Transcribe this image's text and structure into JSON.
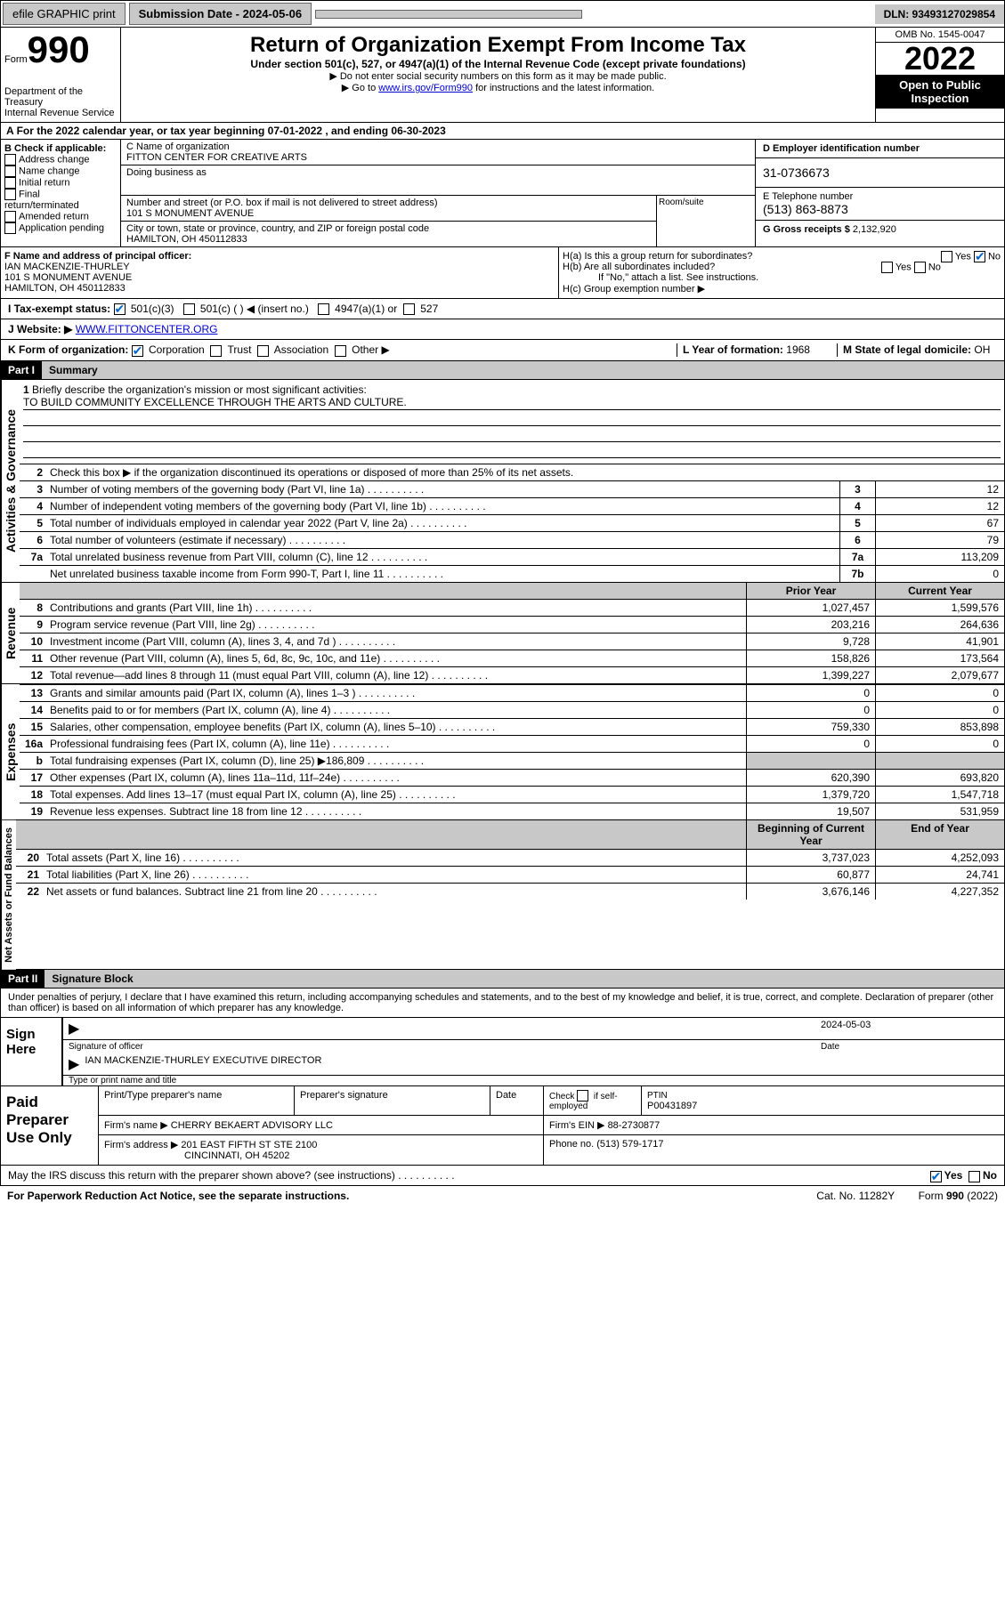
{
  "topbar": {
    "efile": "efile GRAPHIC print",
    "subdate_label": "Submission Date - 2024-05-06",
    "dln": "DLN: 93493127029854"
  },
  "header": {
    "form_word": "Form",
    "form_num": "990",
    "title": "Return of Organization Exempt From Income Tax",
    "subtitle": "Under section 501(c), 527, or 4947(a)(1) of the Internal Revenue Code (except private foundations)",
    "note1": "▶ Do not enter social security numbers on this form as it may be made public.",
    "note2_pre": "▶ Go to ",
    "note2_link": "www.irs.gov/Form990",
    "note2_post": " for instructions and the latest information.",
    "dept": "Department of the Treasury",
    "irs": "Internal Revenue Service",
    "omb": "OMB No. 1545-0047",
    "year": "2022",
    "pub1": "Open to Public",
    "pub2": "Inspection"
  },
  "taxyear": "For the 2022 calendar year, or tax year beginning 07-01-2022   , and ending 06-30-2023",
  "b": {
    "label": "B Check if applicable:",
    "addr": "Address change",
    "name": "Name change",
    "init": "Initial return",
    "final": "Final return/terminated",
    "amend": "Amended return",
    "app": "Application pending"
  },
  "c": {
    "label": "C Name of organization",
    "name": "FITTON CENTER FOR CREATIVE ARTS",
    "dba": "Doing business as",
    "street_label": "Number and street (or P.O. box if mail is not delivered to street address)",
    "room": "Room/suite",
    "street": "101 S MONUMENT AVENUE",
    "city_label": "City or town, state or province, country, and ZIP or foreign postal code",
    "city": "HAMILTON, OH  450112833"
  },
  "d": {
    "label": "D Employer identification number",
    "ein": "31-0736673"
  },
  "e": {
    "label": "E Telephone number",
    "phone": "(513) 863-8873"
  },
  "g": {
    "label": "G Gross receipts $",
    "val": "2,132,920"
  },
  "f": {
    "label": "F Name and address of principal officer:",
    "name": "IAN MACKENZIE-THURLEY",
    "addr1": "101 S MONUMENT AVENUE",
    "addr2": "HAMILTON, OH  450112833"
  },
  "h": {
    "a": "H(a)  Is this a group return for subordinates?",
    "b": "H(b)  Are all subordinates included?",
    "bnote": "If \"No,\" attach a list. See instructions.",
    "c": "H(c)  Group exemption number ▶"
  },
  "i": {
    "label": "I   Tax-exempt status:",
    "c3": "501(c)(3)",
    "c": "501(c) (  ) ◀ (insert no.)",
    "a1": "4947(a)(1) or",
    "s527": "527"
  },
  "j": {
    "label": "J   Website: ▶",
    "url": "WWW.FITTONCENTER.ORG"
  },
  "k": {
    "label": "K Form of organization:",
    "corp": "Corporation",
    "trust": "Trust",
    "assoc": "Association",
    "other": "Other ▶"
  },
  "l": {
    "label": "L Year of formation:",
    "val": "1968"
  },
  "m": {
    "label": "M State of legal domicile:",
    "val": "OH"
  },
  "part1": {
    "hdr": "Part I",
    "title": "Summary"
  },
  "tabs": {
    "ag": "Activities & Governance",
    "rev": "Revenue",
    "exp": "Expenses",
    "nab": "Net Assets or Fund Balances"
  },
  "s1": {
    "num": "1",
    "txt": "Briefly describe the organization's mission or most significant activities:",
    "mission": "TO BUILD COMMUNITY EXCELLENCE THROUGH THE ARTS AND CULTURE."
  },
  "s2": {
    "num": "2",
    "txt": "Check this box ▶        if the organization discontinued its operations or disposed of more than 25% of its net assets."
  },
  "lines": [
    {
      "num": "3",
      "txt": "Number of voting members of the governing body (Part VI, line 1a)",
      "box": "3",
      "val": "12"
    },
    {
      "num": "4",
      "txt": "Number of independent voting members of the governing body (Part VI, line 1b)",
      "box": "4",
      "val": "12"
    },
    {
      "num": "5",
      "txt": "Total number of individuals employed in calendar year 2022 (Part V, line 2a)",
      "box": "5",
      "val": "67"
    },
    {
      "num": "6",
      "txt": "Total number of volunteers (estimate if necessary)",
      "box": "6",
      "val": "79"
    },
    {
      "num": "7a",
      "txt": "Total unrelated business revenue from Part VIII, column (C), line 12",
      "box": "7a",
      "val": "113,209"
    },
    {
      "num": "",
      "txt": "Net unrelated business taxable income from Form 990-T, Part I, line 11",
      "box": "7b",
      "val": "0"
    }
  ],
  "colhdr": {
    "prior": "Prior Year",
    "current": "Current Year"
  },
  "rev": [
    {
      "num": "8",
      "txt": "Contributions and grants (Part VIII, line 1h)",
      "p": "1,027,457",
      "c": "1,599,576"
    },
    {
      "num": "9",
      "txt": "Program service revenue (Part VIII, line 2g)",
      "p": "203,216",
      "c": "264,636"
    },
    {
      "num": "10",
      "txt": "Investment income (Part VIII, column (A), lines 3, 4, and 7d )",
      "p": "9,728",
      "c": "41,901"
    },
    {
      "num": "11",
      "txt": "Other revenue (Part VIII, column (A), lines 5, 6d, 8c, 9c, 10c, and 11e)",
      "p": "158,826",
      "c": "173,564"
    },
    {
      "num": "12",
      "txt": "Total revenue—add lines 8 through 11 (must equal Part VIII, column (A), line 12)",
      "p": "1,399,227",
      "c": "2,079,677"
    }
  ],
  "exp": [
    {
      "num": "13",
      "txt": "Grants and similar amounts paid (Part IX, column (A), lines 1–3 )",
      "p": "0",
      "c": "0"
    },
    {
      "num": "14",
      "txt": "Benefits paid to or for members (Part IX, column (A), line 4)",
      "p": "0",
      "c": "0"
    },
    {
      "num": "15",
      "txt": "Salaries, other compensation, employee benefits (Part IX, column (A), lines 5–10)",
      "p": "759,330",
      "c": "853,898"
    },
    {
      "num": "16a",
      "txt": "Professional fundraising fees (Part IX, column (A), line 11e)",
      "p": "0",
      "c": "0"
    },
    {
      "num": "b",
      "txt": "Total fundraising expenses (Part IX, column (D), line 25) ▶186,809",
      "p": "",
      "c": ""
    },
    {
      "num": "17",
      "txt": "Other expenses (Part IX, column (A), lines 11a–11d, 11f–24e)",
      "p": "620,390",
      "c": "693,820"
    },
    {
      "num": "18",
      "txt": "Total expenses. Add lines 13–17 (must equal Part IX, column (A), line 25)",
      "p": "1,379,720",
      "c": "1,547,718"
    },
    {
      "num": "19",
      "txt": "Revenue less expenses. Subtract line 18 from line 12",
      "p": "19,507",
      "c": "531,959"
    }
  ],
  "nabhdr": {
    "begin": "Beginning of Current Year",
    "end": "End of Year"
  },
  "nab": [
    {
      "num": "20",
      "txt": "Total assets (Part X, line 16)",
      "p": "3,737,023",
      "c": "4,252,093"
    },
    {
      "num": "21",
      "txt": "Total liabilities (Part X, line 26)",
      "p": "60,877",
      "c": "24,741"
    },
    {
      "num": "22",
      "txt": "Net assets or fund balances. Subtract line 21 from line 20",
      "p": "3,676,146",
      "c": "4,227,352"
    }
  ],
  "part2": {
    "hdr": "Part II",
    "title": "Signature Block"
  },
  "sig": {
    "decl": "Under penalties of perjury, I declare that I have examined this return, including accompanying schedules and statements, and to the best of my knowledge and belief, it is true, correct, and complete. Declaration of preparer (other than officer) is based on all information of which preparer has any knowledge.",
    "here": "Sign Here",
    "sigoff": "Signature of officer",
    "date_label": "Date",
    "date": "2024-05-03",
    "name": "IAN MACKENZIE-THURLEY  EXECUTIVE DIRECTOR",
    "typename": "Type or print name and title"
  },
  "prep": {
    "title": "Paid Preparer Use Only",
    "h1": "Print/Type preparer's name",
    "h2": "Preparer's signature",
    "h3": "Date",
    "h4": "Check        if self-employed",
    "h5": "PTIN",
    "ptin": "P00431897",
    "firm_label": "Firm's name   ▶",
    "firm": "CHERRY BEKAERT ADVISORY LLC",
    "ein_label": "Firm's EIN ▶",
    "ein": "88-2730877",
    "addr_label": "Firm's address ▶",
    "addr1": "201 EAST FIFTH ST STE 2100",
    "addr2": "CINCINNATI, OH  45202",
    "phone_label": "Phone no.",
    "phone": "(513) 579-1717"
  },
  "discuss": "May the IRS discuss this return with the preparer shown above? (see instructions)",
  "footer": {
    "pra": "For Paperwork Reduction Act Notice, see the separate instructions.",
    "cat": "Cat. No. 11282Y",
    "form": "Form 990 (2022)"
  }
}
